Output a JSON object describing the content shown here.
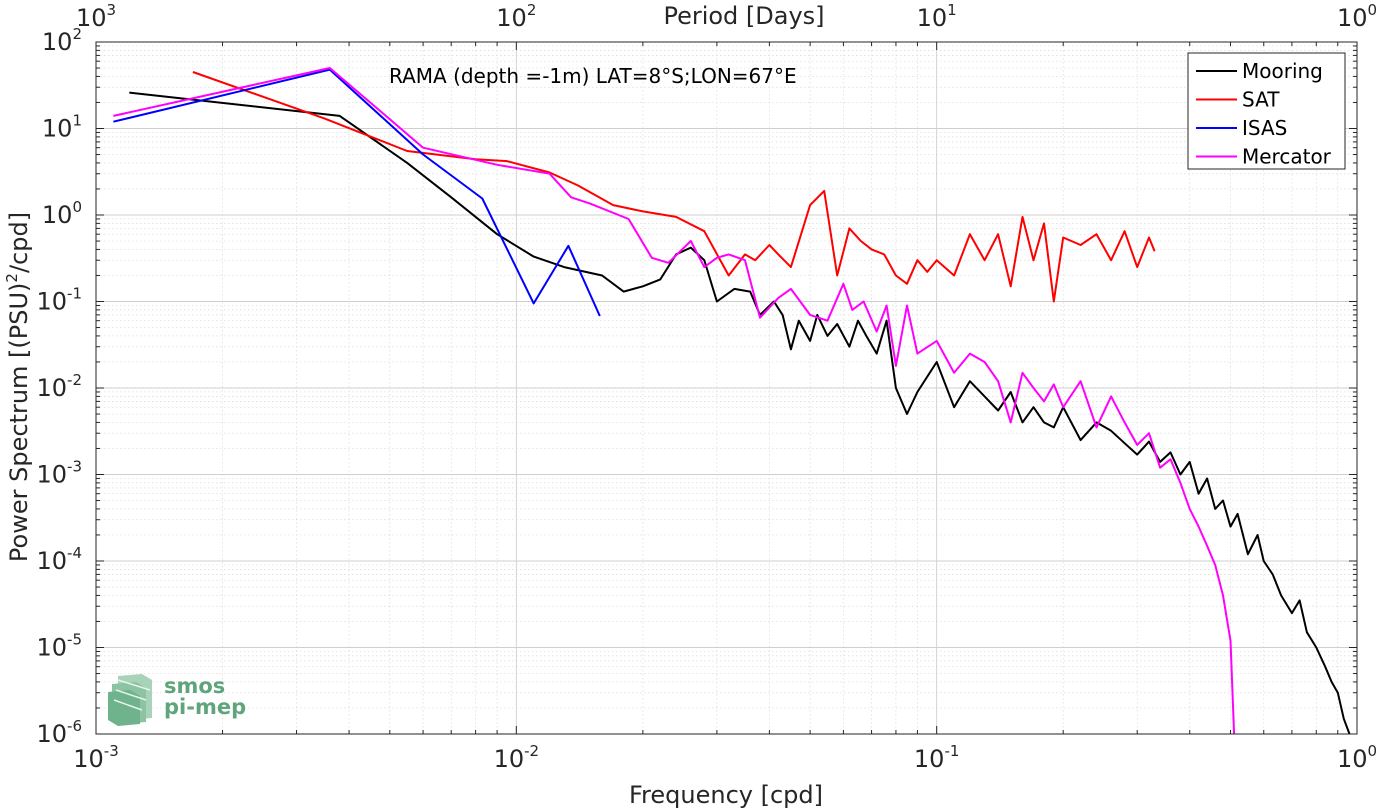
{
  "chart_data": {
    "type": "line",
    "title": "RAMA (depth =-1m) LAT=8°S;LON=67°E",
    "xlabel": "Frequency [cpd]",
    "ylabel": "Power Spectrum [(PSU)",
    "ylabel_sup": "2",
    "ylabel_tail": "/cpd]",
    "top_xlabel": "Period [Days]",
    "xscale": "log",
    "yscale": "log",
    "xlim": [
      0.001,
      1
    ],
    "ylim": [
      1e-06,
      100
    ],
    "grid": true,
    "legend_position": "top-right",
    "x_ticks": [
      {
        "value": 0.001,
        "base": "10",
        "exp": "-3"
      },
      {
        "value": 0.01,
        "base": "10",
        "exp": "-2"
      },
      {
        "value": 0.1,
        "base": "10",
        "exp": "-1"
      },
      {
        "value": 1,
        "base": "10",
        "exp": "0"
      }
    ],
    "top_ticks": [
      {
        "value": 0.001,
        "base": "10",
        "exp": "3"
      },
      {
        "value": 0.01,
        "base": "10",
        "exp": "2"
      },
      {
        "value": 0.1,
        "base": "10",
        "exp": "1"
      },
      {
        "value": 1,
        "base": "10",
        "exp": "0"
      }
    ],
    "y_ticks": [
      {
        "value": 1e-06,
        "base": "10",
        "exp": "-6"
      },
      {
        "value": 1e-05,
        "base": "10",
        "exp": "-5"
      },
      {
        "value": 0.0001,
        "base": "10",
        "exp": "-4"
      },
      {
        "value": 0.001,
        "base": "10",
        "exp": "-3"
      },
      {
        "value": 0.01,
        "base": "10",
        "exp": "-2"
      },
      {
        "value": 0.1,
        "base": "10",
        "exp": "-1"
      },
      {
        "value": 1,
        "base": "10",
        "exp": "0"
      },
      {
        "value": 10,
        "base": "10",
        "exp": "1"
      },
      {
        "value": 100,
        "base": "10",
        "exp": "2"
      }
    ],
    "series": [
      {
        "name": "Mooring",
        "color": "#000000",
        "x": [
          0.0012,
          0.0038,
          0.0055,
          0.007,
          0.009,
          0.011,
          0.013,
          0.016,
          0.018,
          0.02,
          0.022,
          0.024,
          0.026,
          0.028,
          0.03,
          0.033,
          0.036,
          0.038,
          0.041,
          0.043,
          0.045,
          0.047,
          0.05,
          0.052,
          0.055,
          0.058,
          0.062,
          0.065,
          0.068,
          0.072,
          0.076,
          0.08,
          0.085,
          0.09,
          0.1,
          0.11,
          0.12,
          0.13,
          0.14,
          0.15,
          0.16,
          0.17,
          0.18,
          0.19,
          0.2,
          0.22,
          0.24,
          0.26,
          0.28,
          0.3,
          0.32,
          0.34,
          0.36,
          0.38,
          0.4,
          0.42,
          0.44,
          0.46,
          0.48,
          0.5,
          0.52,
          0.55,
          0.58,
          0.6,
          0.63,
          0.66,
          0.7,
          0.73,
          0.76,
          0.8,
          0.84,
          0.87,
          0.9,
          0.93,
          0.96
        ],
        "y": [
          26,
          14,
          4,
          1.6,
          0.6,
          0.33,
          0.25,
          0.2,
          0.13,
          0.15,
          0.18,
          0.35,
          0.42,
          0.3,
          0.1,
          0.14,
          0.13,
          0.07,
          0.1,
          0.07,
          0.028,
          0.06,
          0.035,
          0.07,
          0.04,
          0.055,
          0.03,
          0.06,
          0.04,
          0.025,
          0.06,
          0.01,
          0.005,
          0.009,
          0.02,
          0.006,
          0.012,
          0.008,
          0.0055,
          0.009,
          0.004,
          0.006,
          0.004,
          0.0035,
          0.006,
          0.0025,
          0.004,
          0.0032,
          0.0023,
          0.0017,
          0.0024,
          0.0014,
          0.0018,
          0.001,
          0.0014,
          0.0006,
          0.0009,
          0.0004,
          0.0005,
          0.00025,
          0.00035,
          0.00012,
          0.0002,
          0.0001,
          7e-05,
          4e-05,
          2.5e-05,
          3.5e-05,
          1.5e-05,
          1e-05,
          6e-06,
          4e-06,
          3e-06,
          1.5e-06,
          1e-06
        ]
      },
      {
        "name": "SAT",
        "color": "#ff0000",
        "x": [
          0.0017,
          0.0035,
          0.0055,
          0.008,
          0.0095,
          0.012,
          0.014,
          0.017,
          0.02,
          0.024,
          0.028,
          0.032,
          0.035,
          0.037,
          0.04,
          0.042,
          0.045,
          0.05,
          0.054,
          0.058,
          0.062,
          0.066,
          0.07,
          0.075,
          0.08,
          0.085,
          0.09,
          0.095,
          0.1,
          0.11,
          0.12,
          0.13,
          0.14,
          0.15,
          0.16,
          0.17,
          0.18,
          0.19,
          0.2,
          0.22,
          0.24,
          0.26,
          0.28,
          0.3,
          0.32,
          0.33
        ],
        "y": [
          45,
          13,
          5.5,
          4.4,
          4.2,
          3.1,
          2.2,
          1.3,
          1.1,
          0.95,
          0.65,
          0.2,
          0.35,
          0.3,
          0.45,
          0.35,
          0.25,
          1.3,
          1.9,
          0.2,
          0.7,
          0.5,
          0.4,
          0.35,
          0.2,
          0.16,
          0.3,
          0.22,
          0.3,
          0.2,
          0.6,
          0.3,
          0.6,
          0.15,
          0.95,
          0.3,
          0.8,
          0.1,
          0.55,
          0.45,
          0.6,
          0.3,
          0.65,
          0.25,
          0.55,
          0.38
        ]
      },
      {
        "name": "ISAS",
        "color": "#0000ff",
        "x": [
          0.0011,
          0.0036,
          0.006,
          0.0083,
          0.011,
          0.0133,
          0.0158
        ],
        "y": [
          12,
          48,
          5,
          1.55,
          0.095,
          0.44,
          0.068
        ]
      },
      {
        "name": "Mercator",
        "color": "#ff00ff",
        "x": [
          0.0011,
          0.0036,
          0.006,
          0.009,
          0.012,
          0.0135,
          0.015,
          0.0185,
          0.021,
          0.023,
          0.026,
          0.028,
          0.03,
          0.032,
          0.035,
          0.038,
          0.042,
          0.045,
          0.05,
          0.055,
          0.06,
          0.063,
          0.067,
          0.072,
          0.076,
          0.08,
          0.085,
          0.09,
          0.1,
          0.11,
          0.12,
          0.13,
          0.14,
          0.15,
          0.16,
          0.17,
          0.18,
          0.19,
          0.2,
          0.22,
          0.24,
          0.26,
          0.28,
          0.3,
          0.32,
          0.34,
          0.36,
          0.38,
          0.4,
          0.42,
          0.44,
          0.46,
          0.48,
          0.5,
          0.51
        ],
        "y": [
          14,
          50,
          6,
          3.8,
          3,
          1.6,
          1.35,
          0.9,
          0.32,
          0.28,
          0.5,
          0.25,
          0.32,
          0.35,
          0.3,
          0.065,
          0.11,
          0.14,
          0.07,
          0.06,
          0.16,
          0.08,
          0.1,
          0.045,
          0.09,
          0.018,
          0.09,
          0.025,
          0.035,
          0.015,
          0.025,
          0.02,
          0.012,
          0.004,
          0.015,
          0.01,
          0.007,
          0.011,
          0.006,
          0.012,
          0.0035,
          0.008,
          0.004,
          0.0022,
          0.003,
          0.0012,
          0.0015,
          0.0008,
          0.0004,
          0.00025,
          0.00015,
          9e-05,
          4e-05,
          1.2e-05,
          1e-06
        ]
      }
    ]
  },
  "watermark": {
    "line1": "smos",
    "line2": "pi-mep",
    "color": "#5fa57c"
  }
}
